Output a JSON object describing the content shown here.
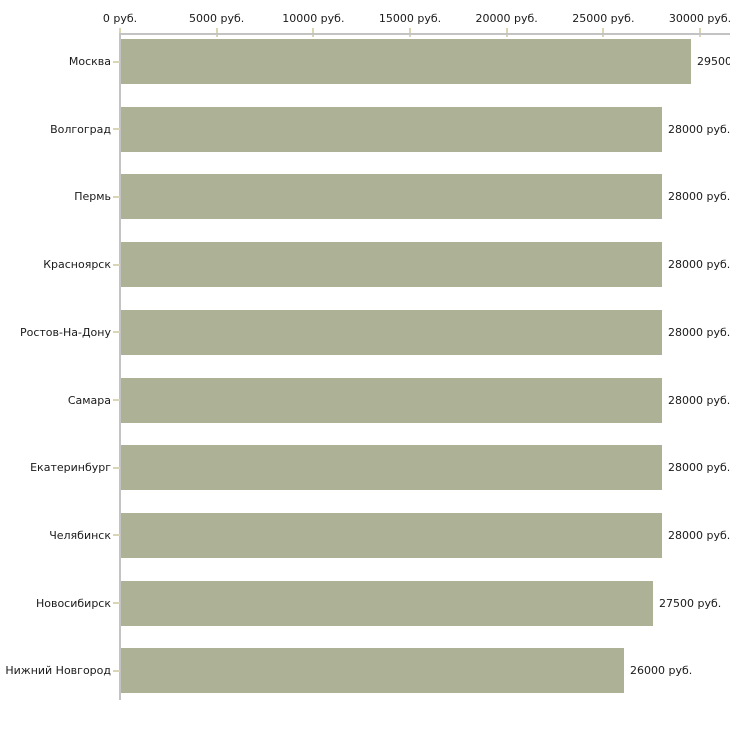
{
  "chart_data": {
    "type": "bar",
    "orientation": "horizontal",
    "title": "",
    "xlabel": "",
    "ylabel": "",
    "unit": "руб.",
    "categories": [
      "Москва",
      "Волгоград",
      "Пермь",
      "Красноярск",
      "Ростов-На-Дону",
      "Самара",
      "Екатеринбург",
      "Челябинск",
      "Новосибирск",
      "Нижний Новгород"
    ],
    "values": [
      29500,
      28000,
      28000,
      28000,
      28000,
      28000,
      28000,
      28000,
      27500,
      26000
    ],
    "value_labels": [
      "29500",
      "28000 руб.",
      "28000 руб.",
      "28000 руб.",
      "28000 руб.",
      "28000 руб.",
      "28000 руб.",
      "28000 руб.",
      "27500 руб.",
      "26000 руб."
    ],
    "x_axis": {
      "min": 0,
      "max": 30000,
      "ticks": [
        {
          "value": 0,
          "label": "0 руб."
        },
        {
          "value": 5000,
          "label": "5000 руб."
        },
        {
          "value": 10000,
          "label": "10000 руб."
        },
        {
          "value": 15000,
          "label": "15000 руб."
        },
        {
          "value": 20000,
          "label": "20000 руб."
        },
        {
          "value": 25000,
          "label": "25000 руб."
        },
        {
          "value": 30000,
          "label": "30000 руб."
        }
      ]
    },
    "grid": false,
    "legend": false,
    "colors": {
      "bar": "#adb196",
      "axis_line": "#c3c3c3",
      "tick_mark": "#d9d5b5",
      "text": "#1a1a1a"
    }
  }
}
